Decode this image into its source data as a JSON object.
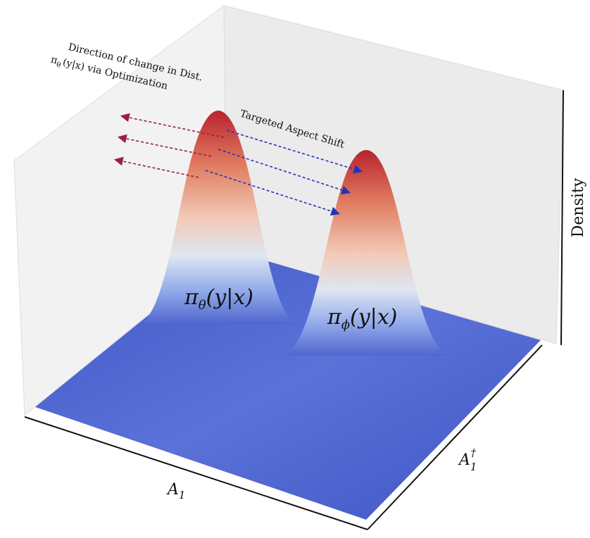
{
  "annotations": {
    "direction": {
      "line1": "Direction of change in Dist.",
      "symbol": "π",
      "sub": "θ",
      "args": "(y|x)",
      "rest": "via Optimization"
    },
    "shift": "Targeted Aspect Shift"
  },
  "surfaces": [
    {
      "symbol": "π",
      "sub": "θ",
      "args": "(y|x)"
    },
    {
      "symbol": "π",
      "sub": "ϕ",
      "args": "(y|x)"
    }
  ],
  "axes": {
    "z": "Density",
    "x": {
      "base": "A",
      "sub": "1"
    },
    "y": {
      "base": "A",
      "sub": "1",
      "sup": "†"
    }
  }
}
